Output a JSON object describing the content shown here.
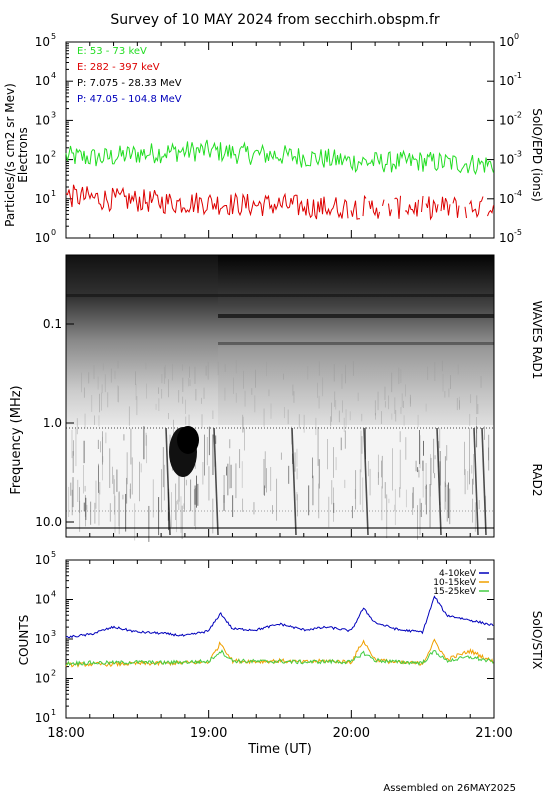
{
  "title": "Survey of 10 MAY 2024 from secchirh.obspm.fr",
  "footer": "Assembled on 26MAY2025",
  "colors": {
    "green": "#22dd22",
    "red": "#dd0000",
    "black": "#000000",
    "blue": "#0000bb",
    "orange": "#f0a000",
    "stix_green": "#44cc44"
  },
  "chart_data": [
    {
      "type": "line",
      "panel": "SolO/EPD",
      "ylabel": "Particles/(s cm2 sr Mev)",
      "ylabel_sub": "Electrons",
      "right_label": "SolO/EPD (ions)",
      "yscale": "log",
      "ylim": [
        1,
        100000
      ],
      "y_ticks": [
        "10",
        "10",
        "10",
        "10",
        "10",
        "10"
      ],
      "y_exps": [
        "0",
        "1",
        "2",
        "3",
        "4",
        "5"
      ],
      "y2lim": [
        1e-05,
        1
      ],
      "y2_ticks": [
        "10",
        "10",
        "10",
        "10",
        "10",
        "10"
      ],
      "y2_exps": [
        "-5",
        "-4",
        "-3",
        "-2",
        "-1",
        "0"
      ],
      "legend": [
        {
          "label": "E: 53 - 73 keV",
          "color": "#22dd22"
        },
        {
          "label": "E: 282 - 397 keV",
          "color": "#dd0000"
        },
        {
          "label": "P: 7.075 - 28.33 MeV",
          "color": "#000000"
        },
        {
          "label": "P: 47.05 - 104.8 MeV",
          "color": "#0000bb"
        }
      ],
      "series": [
        {
          "name": "E: 53 - 73 keV",
          "x": [
            "18:00",
            "18:15",
            "18:30",
            "18:45",
            "19:00",
            "19:15",
            "19:30",
            "19:45",
            "20:00",
            "20:15",
            "20:30",
            "20:45",
            "21:00"
          ],
          "values": [
            120,
            110,
            140,
            160,
            170,
            140,
            130,
            110,
            90,
            85,
            90,
            80,
            75
          ]
        },
        {
          "name": "E: 282 - 397 keV",
          "x": [
            "18:00",
            "18:15",
            "18:30",
            "18:45",
            "19:00",
            "19:15",
            "19:30",
            "19:45",
            "20:00",
            "20:15",
            "20:30",
            "20:45",
            "21:00"
          ],
          "values": [
            12,
            10,
            9,
            8,
            8,
            7,
            7,
            6,
            6,
            6,
            6,
            6,
            6
          ]
        }
      ]
    },
    {
      "type": "heatmap",
      "panel": "WAVES",
      "ylabel": "Frequency (MHz)",
      "right_label_top": "WAVES RAD1",
      "right_label_bottom": "RAD2",
      "yscale": "log",
      "y_ticks": [
        "0.1",
        "1.0",
        "10.0"
      ],
      "note": "Dynamic spectrum; type III-like burst near 18:50-18:55 at 1-5 MHz"
    },
    {
      "type": "line",
      "panel": "SolO/STIX",
      "ylabel": "COUNTS",
      "right_label": "SolO/STIX",
      "xlabel": "Time (UT)",
      "x_ticks": [
        "18:00",
        "19:00",
        "20:00",
        "21:00"
      ],
      "yscale": "log",
      "ylim": [
        10,
        100000
      ],
      "y_ticks": [
        "10",
        "10",
        "10",
        "10",
        "10"
      ],
      "y_exps": [
        "1",
        "2",
        "3",
        "4",
        "5"
      ],
      "legend": [
        {
          "label": "4-10keV",
          "color": "#0000bb"
        },
        {
          "label": "10-15keV",
          "color": "#f0a000"
        },
        {
          "label": "15-25keV",
          "color": "#44cc44"
        }
      ],
      "series": [
        {
          "name": "4-10keV",
          "x": [
            "18:00",
            "18:10",
            "18:20",
            "18:30",
            "18:40",
            "18:50",
            "19:00",
            "19:05",
            "19:10",
            "19:20",
            "19:30",
            "19:40",
            "19:50",
            "20:00",
            "20:05",
            "20:10",
            "20:20",
            "20:30",
            "20:35",
            "20:40",
            "20:50",
            "21:00"
          ],
          "values": [
            1100,
            1300,
            2000,
            1500,
            1400,
            1200,
            1600,
            4500,
            1800,
            1700,
            2400,
            1700,
            2000,
            1600,
            6000,
            2600,
            1700,
            1500,
            12000,
            4000,
            3000,
            2200
          ]
        },
        {
          "name": "10-15keV",
          "x": [
            "18:00",
            "18:10",
            "18:20",
            "18:30",
            "18:40",
            "18:50",
            "19:00",
            "19:05",
            "19:10",
            "19:20",
            "19:30",
            "19:40",
            "19:50",
            "20:00",
            "20:05",
            "20:10",
            "20:20",
            "20:30",
            "20:35",
            "20:40",
            "20:50",
            "21:00"
          ],
          "values": [
            220,
            230,
            230,
            240,
            240,
            250,
            260,
            800,
            280,
            270,
            280,
            260,
            280,
            260,
            900,
            300,
            250,
            240,
            900,
            300,
            500,
            260
          ]
        },
        {
          "name": "15-25keV",
          "x": [
            "18:00",
            "18:10",
            "18:20",
            "18:30",
            "18:40",
            "18:50",
            "19:00",
            "19:05",
            "19:10",
            "19:20",
            "19:30",
            "19:40",
            "19:50",
            "20:00",
            "20:05",
            "20:10",
            "20:20",
            "20:30",
            "20:35",
            "20:40",
            "20:50",
            "21:00"
          ],
          "values": [
            240,
            250,
            250,
            260,
            250,
            260,
            270,
            500,
            280,
            270,
            270,
            260,
            270,
            260,
            450,
            290,
            260,
            250,
            500,
            280,
            350,
            260
          ]
        }
      ]
    }
  ]
}
